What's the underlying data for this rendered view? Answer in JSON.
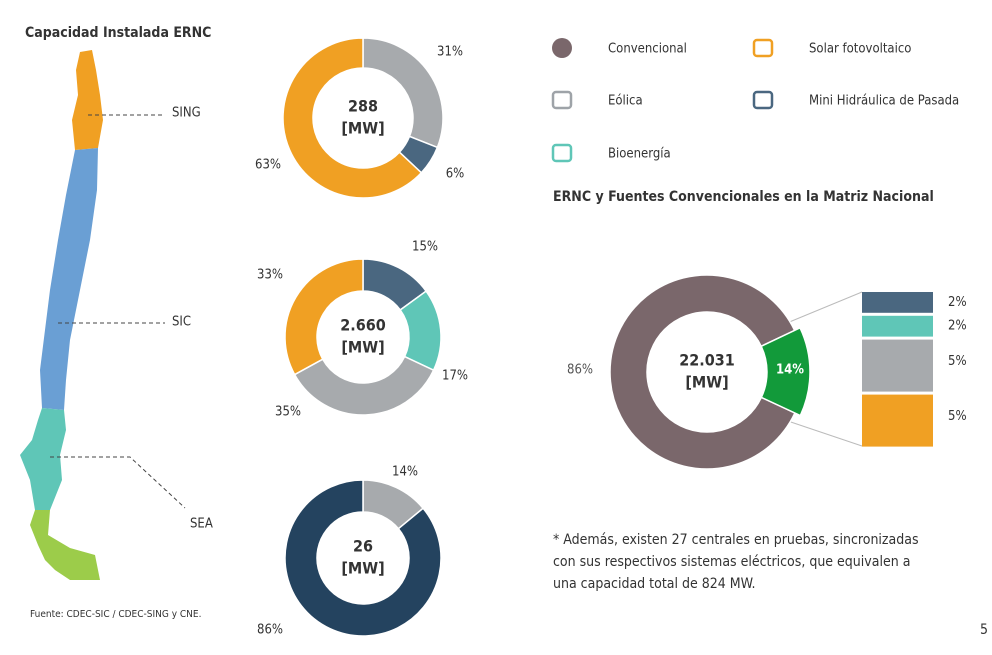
{
  "title": "Capacidad Instalada ERNC",
  "regions": [
    "SING",
    "SIC",
    "SEA"
  ],
  "source": "Fuente: CDEC-SIC / CDEC-SING y CNE.",
  "legend": [
    {
      "name": "Convencional",
      "color": "#7a676b"
    },
    {
      "name": "Solar fotovoltaico",
      "color": "#f0a023"
    },
    {
      "name": "Eólica",
      "color": "#9ea3a8"
    },
    {
      "name": "Mini Hidráulica de Pasada",
      "color": "#4a6780"
    },
    {
      "name": "Bioenergía",
      "color": "#5fc6b7"
    }
  ],
  "note": [
    "* Además, existen 27 centrales en pruebas,  sincronizadas",
    "con sus respectivos sistemas eléctricos, que equivalen a",
    "una capacidad total de 824 MW."
  ],
  "page_number": "5",
  "chart_data": [
    {
      "type": "pie",
      "center_label": "288",
      "center_unit": "[MW]",
      "values": [
        31,
        6,
        63
      ],
      "value_labels": [
        "31%",
        "6%",
        "63%"
      ],
      "colors": [
        "#a7aaad",
        "#4a6780",
        "#f0a023"
      ]
    },
    {
      "type": "pie",
      "center_label": "2.660",
      "center_unit": "[MW]",
      "values": [
        15,
        17,
        35,
        33
      ],
      "value_labels": [
        "15%",
        "17%",
        "35%",
        "33%"
      ],
      "colors": [
        "#4a6780",
        "#5fc6b7",
        "#a7aaad",
        "#f0a023"
      ]
    },
    {
      "type": "pie",
      "center_label": "26",
      "center_unit": "[MW]",
      "values": [
        14,
        86
      ],
      "value_labels": [
        "14%",
        "86%"
      ],
      "colors": [
        "#a7aaad",
        "#24435f"
      ]
    },
    {
      "type": "pie",
      "title": "ERNC y Fuentes Convencionales en la Matriz Nacional",
      "center_label": "22.031",
      "center_unit": "[MW]",
      "values": [
        86,
        14
      ],
      "value_labels": [
        "86%",
        "14%"
      ],
      "colors": [
        "#7a676b",
        "#129a3a"
      ]
    },
    {
      "type": "bar",
      "values": [
        2,
        2,
        5,
        5
      ],
      "value_labels": [
        "2%",
        "2%",
        "5%",
        "5%"
      ],
      "colors": [
        "#4a6780",
        "#5fc6b7",
        "#a7aaad",
        "#f0a023"
      ]
    }
  ]
}
